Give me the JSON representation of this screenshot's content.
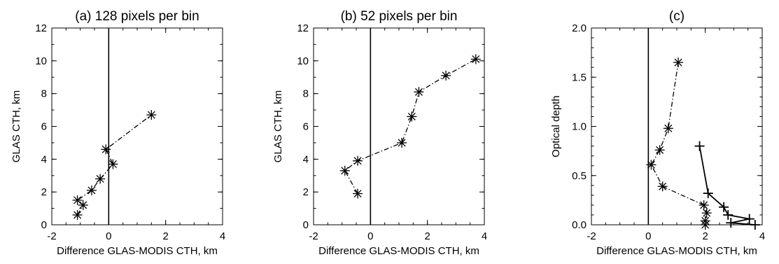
{
  "chart_data": [
    {
      "type": "line",
      "title": "(a) 128 pixels per bin",
      "xlabel": "Difference GLAS-MODIS CTH, km",
      "ylabel": "GLAS CTH, km",
      "xlim": [
        -2,
        4
      ],
      "ylim": [
        0,
        12
      ],
      "xticks": [
        "-2",
        "0",
        "2",
        "4"
      ],
      "yticks": [
        "0",
        "2",
        "4",
        "6",
        "8",
        "10",
        "12"
      ],
      "vline_x": 0,
      "series": [
        {
          "style": "dash-dot",
          "marker": "asterisk",
          "points": [
            [
              -1.1,
              0.6
            ],
            [
              -0.9,
              1.2
            ],
            [
              -1.1,
              1.5
            ],
            [
              -0.6,
              2.1
            ],
            [
              -0.3,
              2.8
            ],
            [
              0.15,
              3.7
            ],
            [
              -0.1,
              4.6
            ],
            [
              1.5,
              6.7
            ]
          ]
        }
      ]
    },
    {
      "type": "line",
      "title": "(b) 52 pixels per bin",
      "xlabel": "Difference GLAS-MODIS CTH, km",
      "ylabel": "GLAS CTH, km",
      "xlim": [
        -2,
        4
      ],
      "ylim": [
        0,
        12
      ],
      "xticks": [
        "-2",
        "0",
        "2",
        "4"
      ],
      "yticks": [
        "0",
        "2",
        "4",
        "6",
        "8",
        "10",
        "12"
      ],
      "vline_x": 0,
      "series": [
        {
          "style": "dash-dot",
          "marker": "asterisk",
          "points": [
            [
              -0.45,
              1.9
            ],
            [
              -0.9,
              3.3
            ],
            [
              -0.45,
              3.9
            ],
            [
              1.1,
              5.0
            ],
            [
              1.45,
              6.6
            ],
            [
              1.7,
              8.1
            ],
            [
              2.65,
              9.1
            ],
            [
              3.7,
              10.1
            ]
          ]
        }
      ]
    },
    {
      "type": "line",
      "title": "(c)",
      "xlabel": "Difference GLAS-MODIS CTH, km",
      "ylabel": "Optical depth",
      "xlim": [
        -2,
        4
      ],
      "ylim": [
        0,
        2.0
      ],
      "xticks": [
        "-2",
        "0",
        "2",
        "4"
      ],
      "yticks": [
        "0.0",
        "0.5",
        "1.0",
        "1.5",
        "2.0"
      ],
      "vline_x": 0,
      "series": [
        {
          "style": "dash-dot",
          "marker": "asterisk",
          "points": [
            [
              2.0,
              0.0
            ],
            [
              2.0,
              0.04
            ],
            [
              2.05,
              0.12
            ],
            [
              1.95,
              0.2
            ],
            [
              0.5,
              0.39
            ],
            [
              0.1,
              0.61
            ],
            [
              0.4,
              0.76
            ],
            [
              0.7,
              0.98
            ],
            [
              1.05,
              1.65
            ]
          ]
        },
        {
          "style": "solid",
          "marker": "plus",
          "points": [
            [
              1.8,
              0.8
            ],
            [
              2.1,
              0.32
            ],
            [
              2.65,
              0.18
            ],
            [
              2.8,
              0.1
            ],
            [
              3.55,
              0.06
            ],
            [
              2.9,
              0.02
            ],
            [
              3.75,
              0.0
            ]
          ]
        }
      ]
    }
  ]
}
